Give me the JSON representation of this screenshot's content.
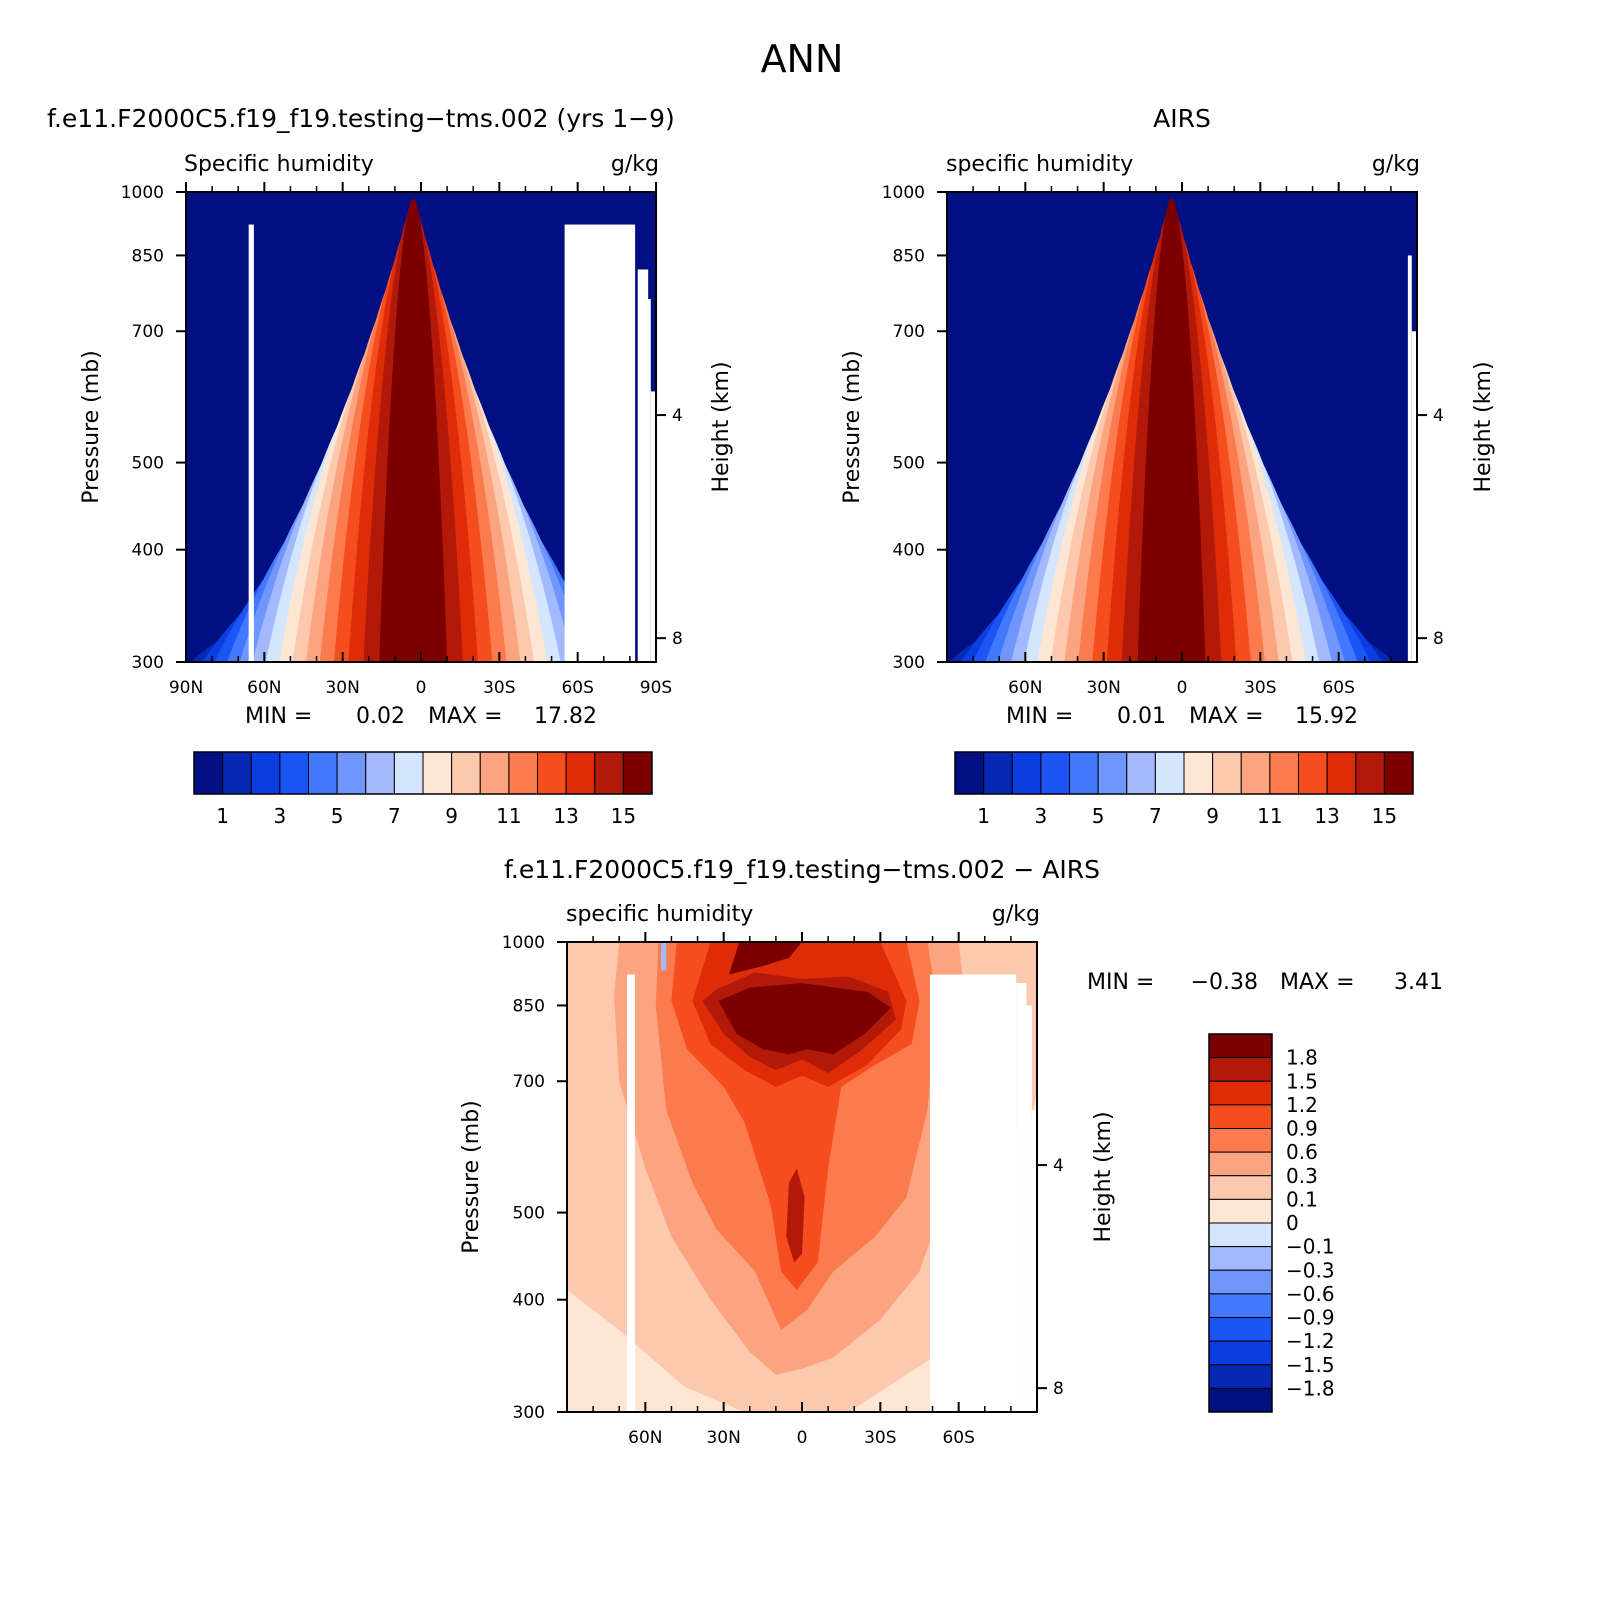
{
  "figure": {
    "title": "ANN",
    "panels": [
      {
        "id": "model",
        "title": "f.e11.F2000C5.f19_f19.testing−tms.002 (yrs 1−9)",
        "left_label": "Specific humidity",
        "right_label": "g/kg",
        "ylabel": "Pressure (mb)",
        "y2label": "Height (km)",
        "stats": {
          "min_label": "MIN =",
          "min": "0.02",
          "max_label": "MAX =",
          "max": "17.82"
        }
      },
      {
        "id": "obs",
        "title": "AIRS",
        "left_label": "specific humidity",
        "right_label": "g/kg",
        "ylabel": "Pressure (mb)",
        "y2label": "Height (km)",
        "stats": {
          "min_label": "MIN =",
          "min": "0.01",
          "max_label": "MAX =",
          "max": "15.92"
        }
      },
      {
        "id": "diff",
        "title": "f.e11.F2000C5.f19_f19.testing−tms.002 − AIRS",
        "left_label": "specific humidity",
        "right_label": "g/kg",
        "ylabel": "Pressure (mb)",
        "y2label": "Height (km)",
        "stats": {
          "min_label": "MIN =",
          "min": "−0.38",
          "max_label": "MAX =",
          "max": "3.41"
        }
      }
    ]
  },
  "chart_data": [
    {
      "type": "heatmap",
      "title": "f.e11.F2000C5.f19_f19.testing−tms.002 (yrs 1−9)",
      "ylabel": "Pressure (mb)",
      "y2label": "Height (km)",
      "x_tick_labels": [
        "90N",
        "60N",
        "30N",
        "0",
        "30S",
        "60S",
        "90S"
      ],
      "x_tick_values": [
        90,
        60,
        30,
        0,
        -30,
        -60,
        -90
      ],
      "xlim": [
        90,
        -90
      ],
      "y_tick_labels": [
        "300",
        "400",
        "500",
        "700",
        "850",
        "1000"
      ],
      "ylim": [
        1000,
        300
      ],
      "y_scale": "log",
      "y2_tick_labels": [
        "8",
        "4"
      ],
      "peak_lat": 3,
      "peak_value_max": 17.82,
      "min": 0.02,
      "colorbar": {
        "labels": [
          "1",
          "3",
          "5",
          "7",
          "9",
          "11",
          "13",
          "15"
        ],
        "levels": [
          1,
          2,
          3,
          4,
          5,
          6,
          7,
          8,
          9,
          10,
          11,
          12,
          13,
          14,
          15
        ],
        "colors": [
          "#000f82",
          "#0628b4",
          "#0b3ee0",
          "#1c55f6",
          "#4278fb",
          "#7095fd",
          "#a2b9fd",
          "#d3e6fd",
          "#fde6d4",
          "#fdc9ae",
          "#fca480",
          "#fb7a4e",
          "#f64d1e",
          "#df2c08",
          "#b21908",
          "#7d0000"
        ]
      }
    },
    {
      "type": "heatmap",
      "title": "AIRS",
      "ylabel": "Pressure (mb)",
      "y2label": "Height (km)",
      "x_tick_labels": [
        "60N",
        "30N",
        "0",
        "30S",
        "60S"
      ],
      "x_tick_values": [
        60,
        30,
        0,
        -30,
        -60
      ],
      "xlim": [
        90,
        -90
      ],
      "y_tick_labels": [
        "300",
        "400",
        "500",
        "700",
        "850",
        "1000"
      ],
      "ylim": [
        1000,
        300
      ],
      "y_scale": "log",
      "y2_tick_labels": [
        "8",
        "4"
      ],
      "peak_lat": 4,
      "peak_value_max": 15.92,
      "min": 0.01,
      "colorbar": {
        "labels": [
          "1",
          "3",
          "5",
          "7",
          "9",
          "11",
          "13",
          "15"
        ],
        "levels": [
          1,
          2,
          3,
          4,
          5,
          6,
          7,
          8,
          9,
          10,
          11,
          12,
          13,
          14,
          15
        ],
        "colors": [
          "#000f82",
          "#0628b4",
          "#0b3ee0",
          "#1c55f6",
          "#4278fb",
          "#7095fd",
          "#a2b9fd",
          "#d3e6fd",
          "#fde6d4",
          "#fdc9ae",
          "#fca480",
          "#fb7a4e",
          "#f64d1e",
          "#df2c08",
          "#b21908",
          "#7d0000"
        ]
      }
    },
    {
      "type": "heatmap",
      "title": "f.e11.F2000C5.f19_f19.testing−tms.002 − AIRS",
      "ylabel": "Pressure (mb)",
      "y2label": "Height (km)",
      "x_tick_labels": [
        "60N",
        "30N",
        "0",
        "30S",
        "60S"
      ],
      "x_tick_values": [
        60,
        30,
        0,
        -30,
        -60
      ],
      "xlim": [
        90,
        -90
      ],
      "y_tick_labels": [
        "300",
        "400",
        "500",
        "700",
        "850",
        "1000"
      ],
      "ylim": [
        1000,
        300
      ],
      "y_scale": "log",
      "y2_tick_labels": [
        "8",
        "4"
      ],
      "min": -0.38,
      "max": 3.41,
      "colorbar": {
        "labels": [
          "1.8",
          "1.5",
          "1.2",
          "0.9",
          "0.6",
          "0.3",
          "0.1",
          "0",
          "−0.1",
          "−0.3",
          "−0.6",
          "−0.9",
          "−1.2",
          "−1.5",
          "−1.8"
        ],
        "colors": [
          "#7d0000",
          "#b21908",
          "#df2c08",
          "#f64d1e",
          "#fb7a4e",
          "#fca480",
          "#fdc9ae",
          "#fde6d4",
          "#d3e6fd",
          "#a2b9fd",
          "#7095fd",
          "#4278fb",
          "#1c55f6",
          "#0b3ee0",
          "#0628b4",
          "#000f82"
        ]
      }
    }
  ]
}
